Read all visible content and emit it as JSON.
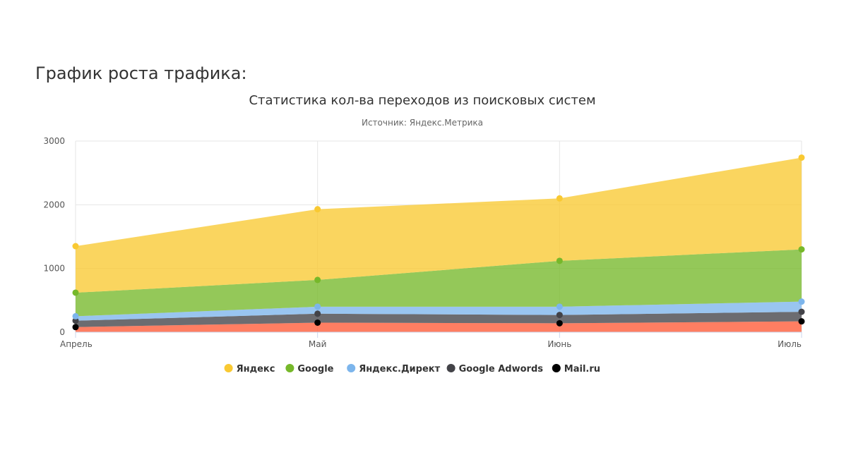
{
  "page": {
    "heading": "График роста трафика:"
  },
  "chart_data": {
    "type": "area",
    "stacked": true,
    "title": "Статистика кол-ва переходов из поисковых систем",
    "subtitle": "Источник: Яндекс.Метрика",
    "categories": [
      "Апрель",
      "Май",
      "Июнь",
      "Июль"
    ],
    "ylim": [
      0,
      3000
    ],
    "yticks": [
      0,
      1000,
      2000,
      3000
    ],
    "grid": true,
    "legend_position": "bottom-center",
    "series": [
      {
        "name": "Яндекс",
        "color": "#f9c932",
        "values": [
          730,
          1110,
          980,
          1440
        ]
      },
      {
        "name": "Google",
        "color": "#76b82a",
        "values": [
          370,
          420,
          720,
          820
        ]
      },
      {
        "name": "Яндекс.Директ",
        "color": "#7cb5ec",
        "values": [
          70,
          110,
          130,
          160
        ]
      },
      {
        "name": "Google Adwords",
        "color": "#434348",
        "values": [
          100,
          140,
          130,
          150
        ]
      },
      {
        "name": "Mail.ru",
        "color": "#000000",
        "area_color": "#ff5a36",
        "values": [
          80,
          150,
          140,
          170
        ]
      }
    ]
  }
}
